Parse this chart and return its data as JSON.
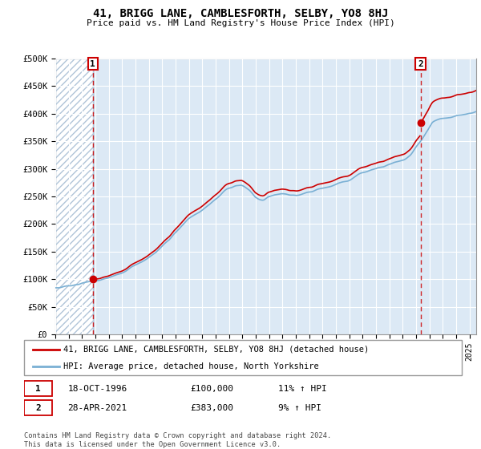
{
  "title": "41, BRIGG LANE, CAMBLESFORTH, SELBY, YO8 8HJ",
  "subtitle": "Price paid vs. HM Land Registry's House Price Index (HPI)",
  "ylim": [
    0,
    500000
  ],
  "yticks": [
    0,
    50000,
    100000,
    150000,
    200000,
    250000,
    300000,
    350000,
    400000,
    450000,
    500000
  ],
  "ytick_labels": [
    "£0",
    "£50K",
    "£100K",
    "£150K",
    "£200K",
    "£250K",
    "£300K",
    "£350K",
    "£400K",
    "£450K",
    "£500K"
  ],
  "xlim_start": 1994.0,
  "xlim_end": 2025.5,
  "sale1_x": 1996.8,
  "sale1_y": 100000,
  "sale2_x": 2021.33,
  "sale2_y": 383000,
  "line1_color": "#cc0000",
  "line2_color": "#7ab0d4",
  "legend_line1": "41, BRIGG LANE, CAMBLESFORTH, SELBY, YO8 8HJ (detached house)",
  "legend_line2": "HPI: Average price, detached house, North Yorkshire",
  "note1_date": "18-OCT-1996",
  "note1_price": "£100,000",
  "note1_hpi": "11% ↑ HPI",
  "note2_date": "28-APR-2021",
  "note2_price": "£383,000",
  "note2_hpi": "9% ↑ HPI",
  "footer": "Contains HM Land Registry data © Crown copyright and database right 2024.\nThis data is licensed under the Open Government Licence v3.0.",
  "plot_bg_color": "#dce9f5",
  "grid_color": "#ffffff",
  "hatch_color": "#b0c4d8",
  "vline_color": "#cc0000"
}
